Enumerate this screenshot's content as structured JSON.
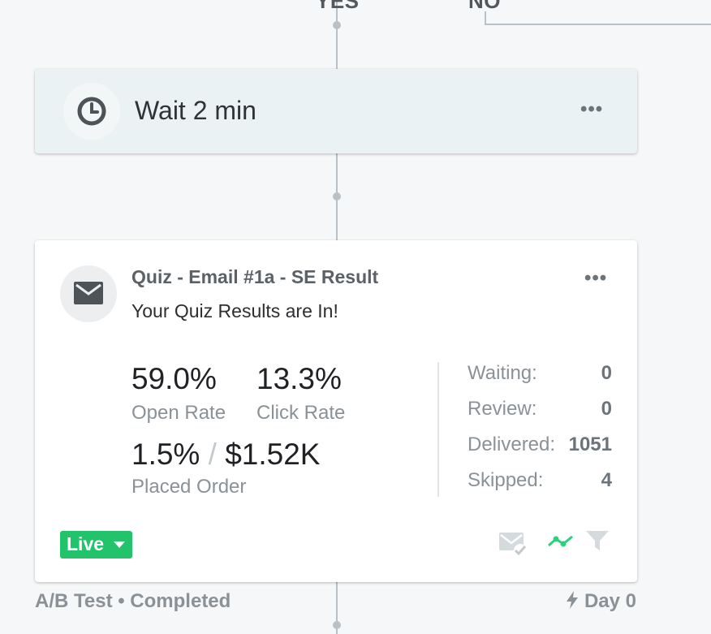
{
  "branches": {
    "yes_label": "YES",
    "no_label": "NO"
  },
  "wait_node": {
    "icon": "clock-icon",
    "label": "Wait 2 min",
    "menu": "•••"
  },
  "email_node": {
    "icon": "envelope-icon",
    "title": "Quiz - Email #1a - SE Result",
    "subject": "Your Quiz Results are In!",
    "menu": "•••",
    "open_rate": {
      "value": "59.0%",
      "label": "Open Rate"
    },
    "click_rate": {
      "value": "13.3%",
      "label": "Click Rate"
    },
    "placed_order": {
      "rate": "1.5%",
      "separator": "/",
      "revenue": "$1.52K",
      "label": "Placed Order"
    },
    "stats": [
      {
        "label": "Waiting:",
        "value": "0"
      },
      {
        "label": "Review:",
        "value": "0"
      },
      {
        "label": "Delivered:",
        "value": "1051"
      },
      {
        "label": "Skipped:",
        "value": "4"
      }
    ],
    "status": {
      "label": "Live",
      "color": "#22c36b"
    },
    "footer_icons": [
      "email-check-icon",
      "trend-icon",
      "filter-icon"
    ]
  },
  "below_card": {
    "left": "A/B Test • Completed",
    "right": "Day 0",
    "right_icon": "lightning-icon"
  }
}
